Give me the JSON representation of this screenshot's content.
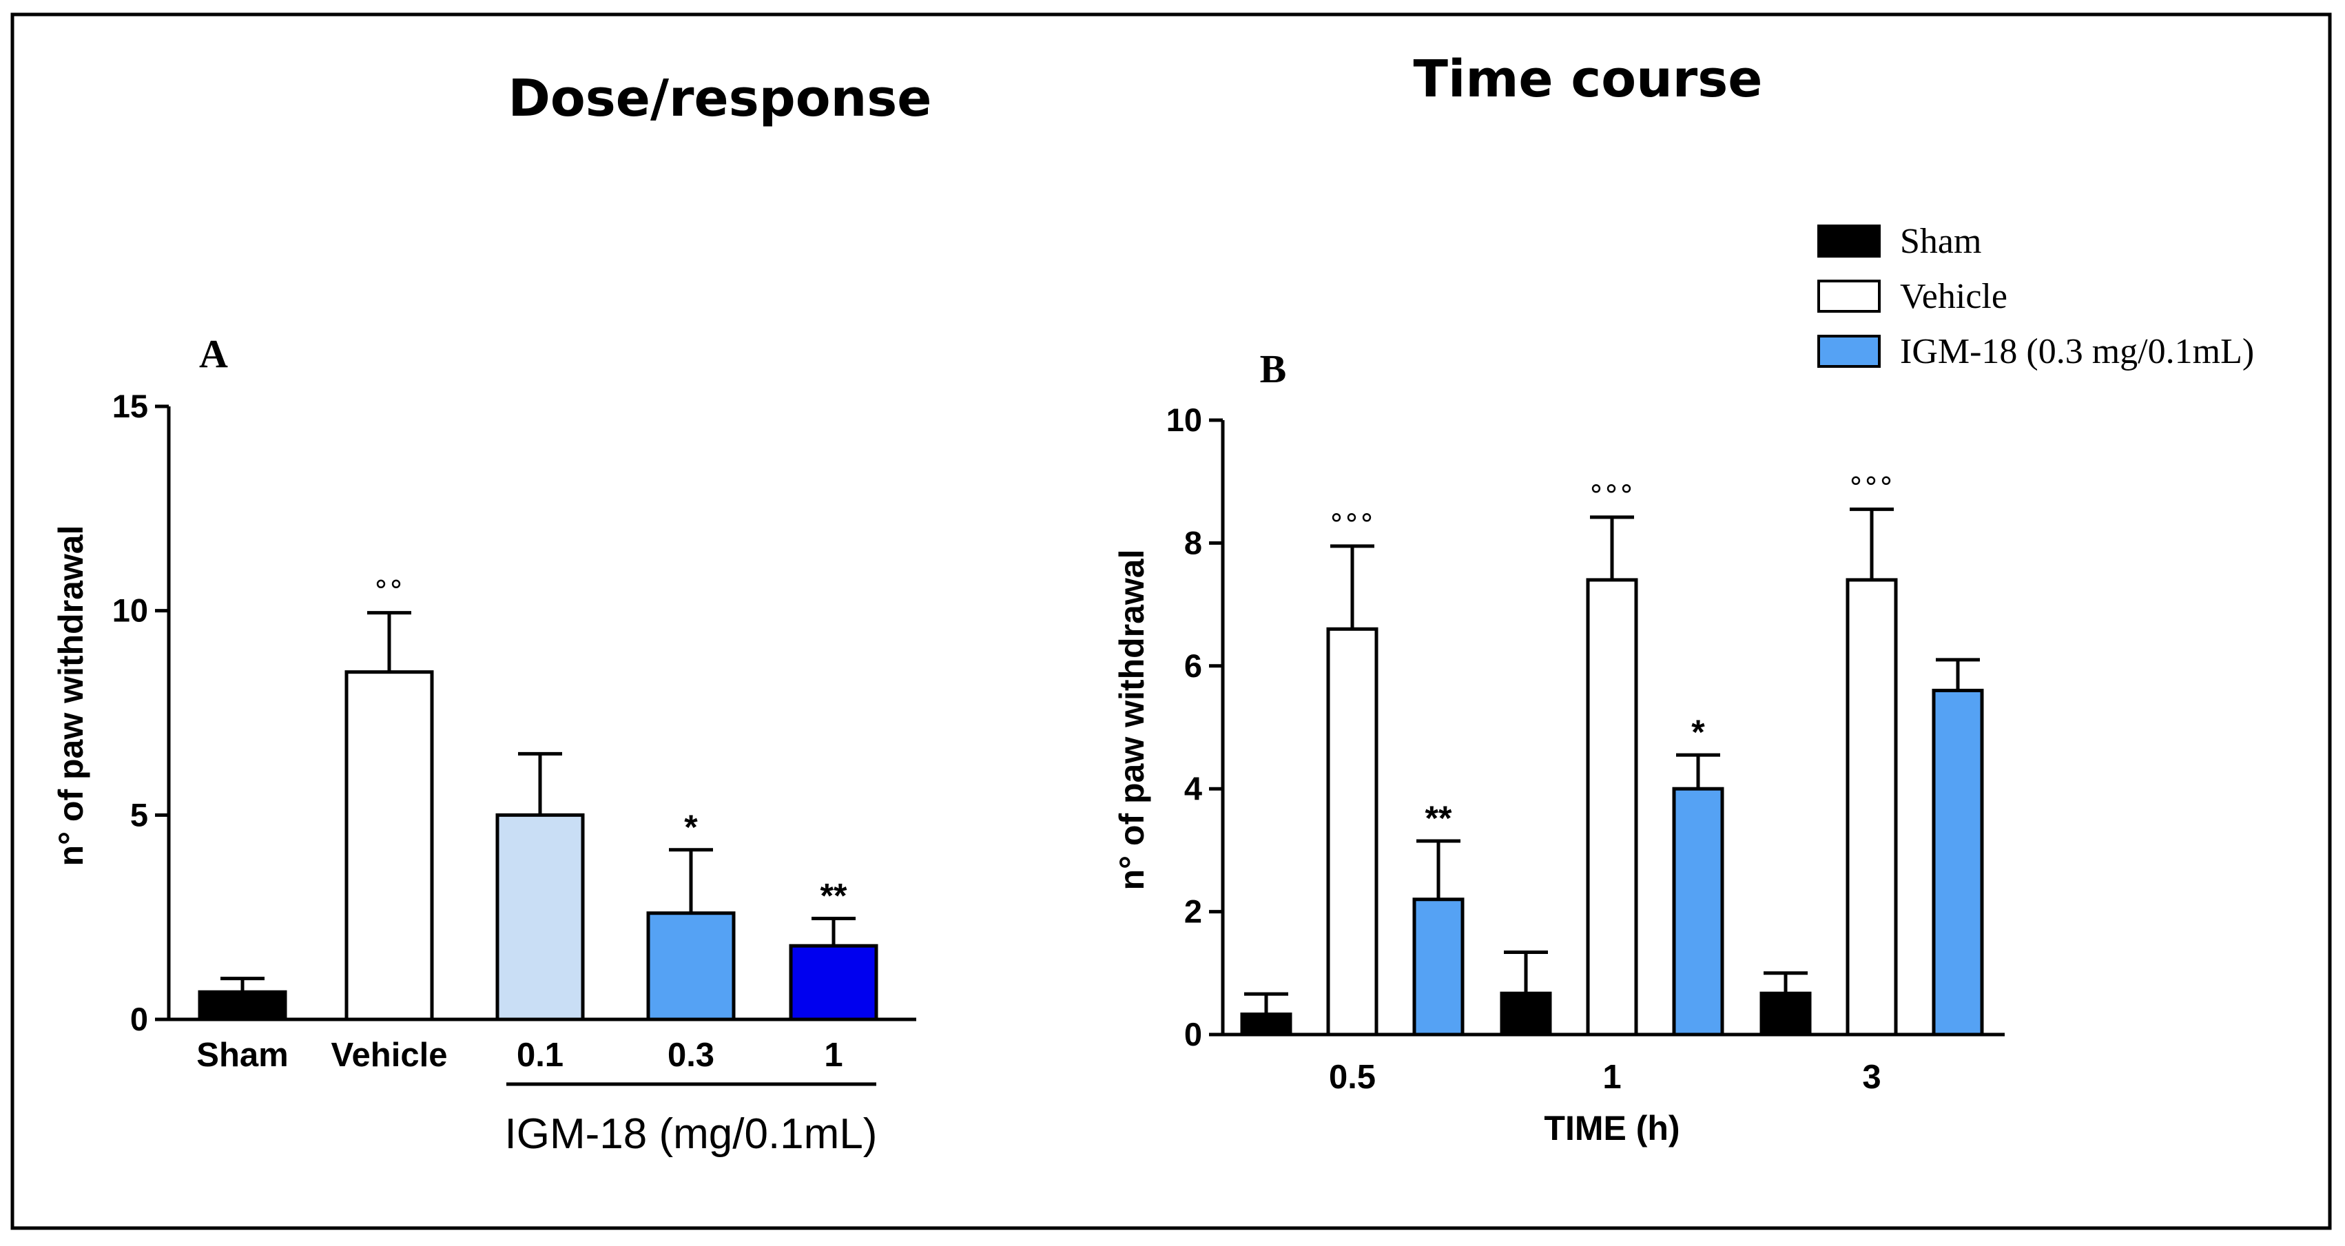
{
  "page": {
    "border_color": "#000000",
    "colors": {
      "sham": "#000000",
      "vehicle": "#ffffff",
      "dose_0_1": "#c9def5",
      "dose_0_3": "#55a2f4",
      "dose_1": "#0000ef",
      "igm18": "#55a2f4"
    }
  },
  "chart_data": [
    {
      "id": "dose_response",
      "type": "bar",
      "title": "Dose/response",
      "panel_letter": "A",
      "ylabel": "n° of paw withdrawal",
      "xlabel": "",
      "ylim": [
        0,
        15
      ],
      "yticks": [
        "0",
        "5",
        "10",
        "15"
      ],
      "categories": [
        "Sham",
        "Vehicle",
        "0.1",
        "0.3",
        "1"
      ],
      "values": [
        0.67,
        8.5,
        5.0,
        2.6,
        1.8
      ],
      "errors": [
        0.33,
        1.45,
        1.5,
        1.55,
        0.67
      ],
      "colors": [
        "#000000",
        "#ffffff",
        "#c9def5",
        "#55a2f4",
        "#0000ef"
      ],
      "annotations": [
        "",
        "°°",
        "",
        "*",
        "**"
      ],
      "group_label": "IGM-18 (mg/0.1mL)"
    },
    {
      "id": "time_course",
      "type": "bar",
      "title": "Time course",
      "panel_letter": "B",
      "ylabel": "n° of paw withdrawal",
      "xlabel": "TIME (h)",
      "ylim": [
        0,
        10
      ],
      "yticks": [
        "0",
        "2",
        "4",
        "6",
        "8",
        "10"
      ],
      "categories": [
        "0.5",
        "1",
        "3"
      ],
      "series": [
        {
          "name": "Sham",
          "values": [
            0.33,
            0.67,
            0.67
          ],
          "errors": [
            0.33,
            0.67,
            0.33
          ],
          "annotations": [
            "",
            "",
            ""
          ],
          "color": "#000000"
        },
        {
          "name": "Vehicle",
          "values": [
            6.6,
            7.4,
            7.4
          ],
          "errors": [
            1.35,
            1.02,
            1.15
          ],
          "annotations": [
            "°°°",
            "°°°",
            "°°°"
          ],
          "color": "#ffffff"
        },
        {
          "name": "IGM-18 (0.3 mg/0.1mL)",
          "values": [
            2.2,
            4.0,
            5.6
          ],
          "errors": [
            0.95,
            0.55,
            0.5
          ],
          "annotations": [
            "**",
            "*",
            ""
          ],
          "color": "#55a2f4"
        }
      ],
      "legend_position": "top-right"
    }
  ]
}
